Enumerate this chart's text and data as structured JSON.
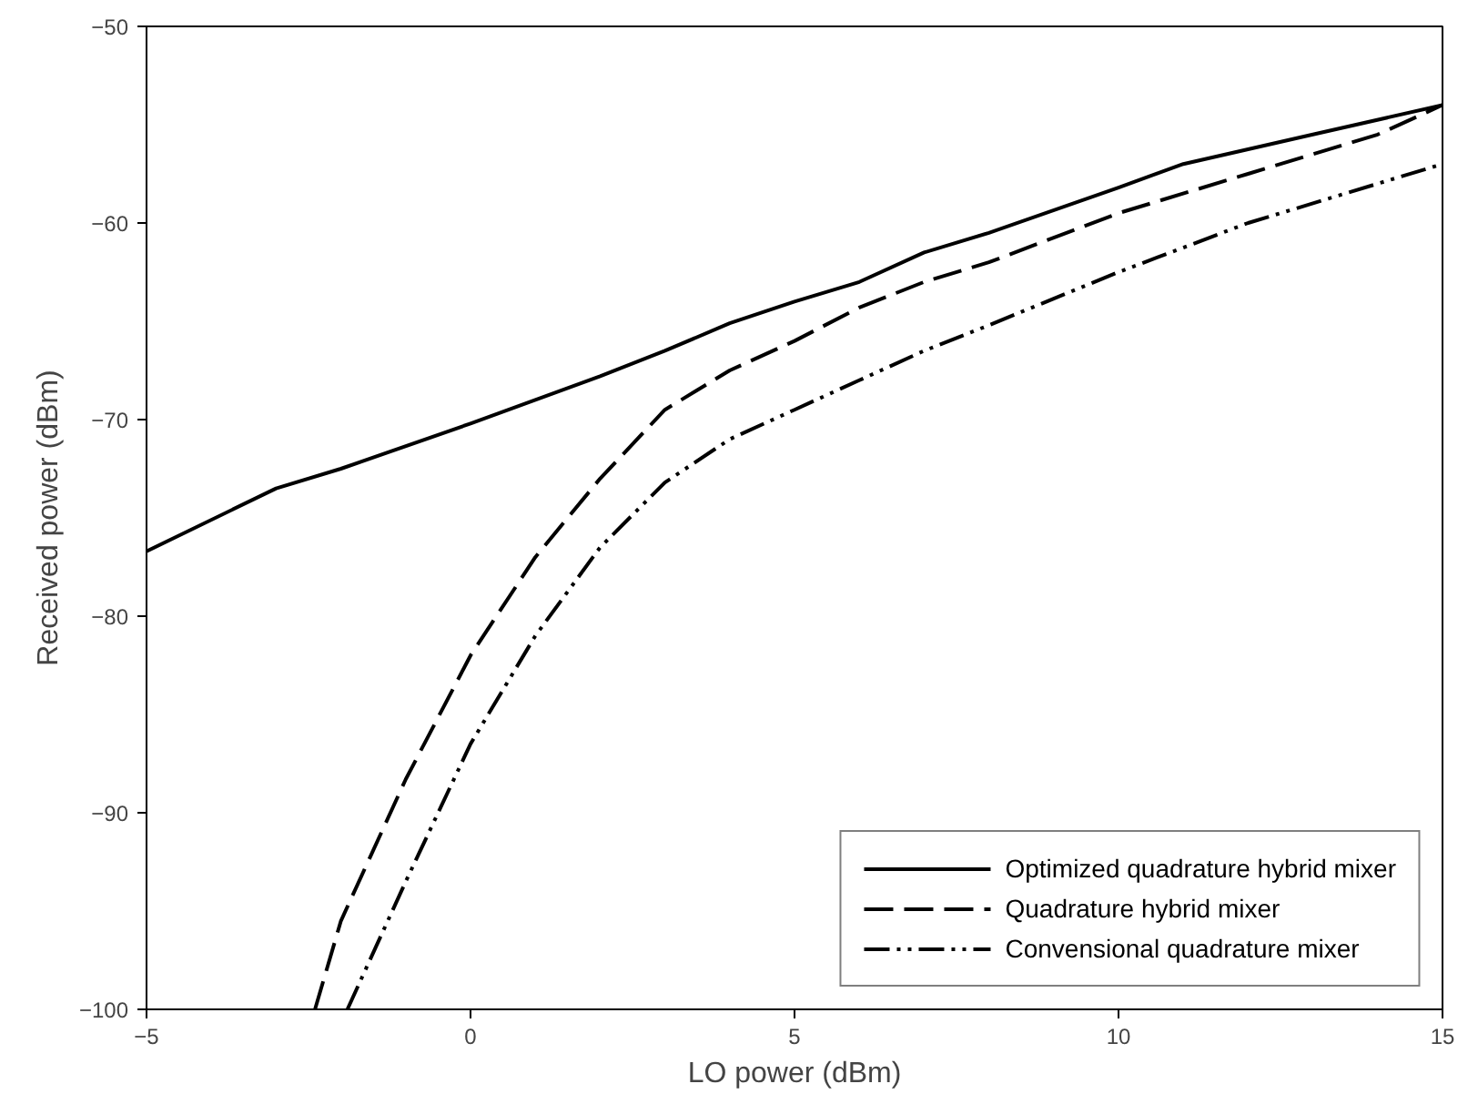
{
  "chart_data": {
    "type": "line",
    "xlabel": "LO power (dBm)",
    "ylabel": "Received power (dBm)",
    "xlim": [
      -5,
      15
    ],
    "ylim": [
      -100,
      -50
    ],
    "xticks": [
      -5,
      0,
      5,
      10,
      15
    ],
    "yticks": [
      -100,
      -90,
      -80,
      -70,
      -60,
      -50
    ],
    "grid": false,
    "legend": "bottom right",
    "series": [
      {
        "name": "Optimized quadrature hybrid mixer",
        "color": "#000000",
        "line_style": "solid",
        "x": [
          -5,
          -3,
          -2,
          0,
          2,
          3,
          4,
          5,
          6,
          7,
          8,
          10,
          11,
          13,
          15
        ],
        "values": [
          -76.7,
          -73.5,
          -72.5,
          -70.2,
          -67.8,
          -66.5,
          -65.1,
          -64,
          -63,
          -61.5,
          -60.5,
          -58.2,
          -57,
          -55.5,
          -54
        ]
      },
      {
        "name": "Quadrature hybrid mixer",
        "color": "#000000",
        "line_style": "dashed",
        "x": [
          -2.4,
          -2,
          -1,
          0,
          1,
          2,
          3,
          4,
          5,
          6,
          7,
          8,
          10,
          12,
          14,
          15
        ],
        "values": [
          -100,
          -95.5,
          -88.3,
          -82,
          -77,
          -73,
          -69.5,
          -67.5,
          -66,
          -64.3,
          -63,
          -62,
          -59.5,
          -57.5,
          -55.5,
          -54
        ]
      },
      {
        "name": "Convensional quadrature mixer",
        "color": "#000000",
        "line_style": "dashdot",
        "x": [
          -1.9,
          -1,
          0,
          1,
          2,
          3,
          4,
          5,
          6,
          7,
          8,
          10,
          12,
          14,
          15
        ],
        "values": [
          -100,
          -93.5,
          -86.5,
          -81,
          -76.5,
          -73.2,
          -71,
          -69.5,
          -68,
          -66.5,
          -65.2,
          -62.5,
          -60,
          -58,
          -57
        ]
      }
    ]
  }
}
